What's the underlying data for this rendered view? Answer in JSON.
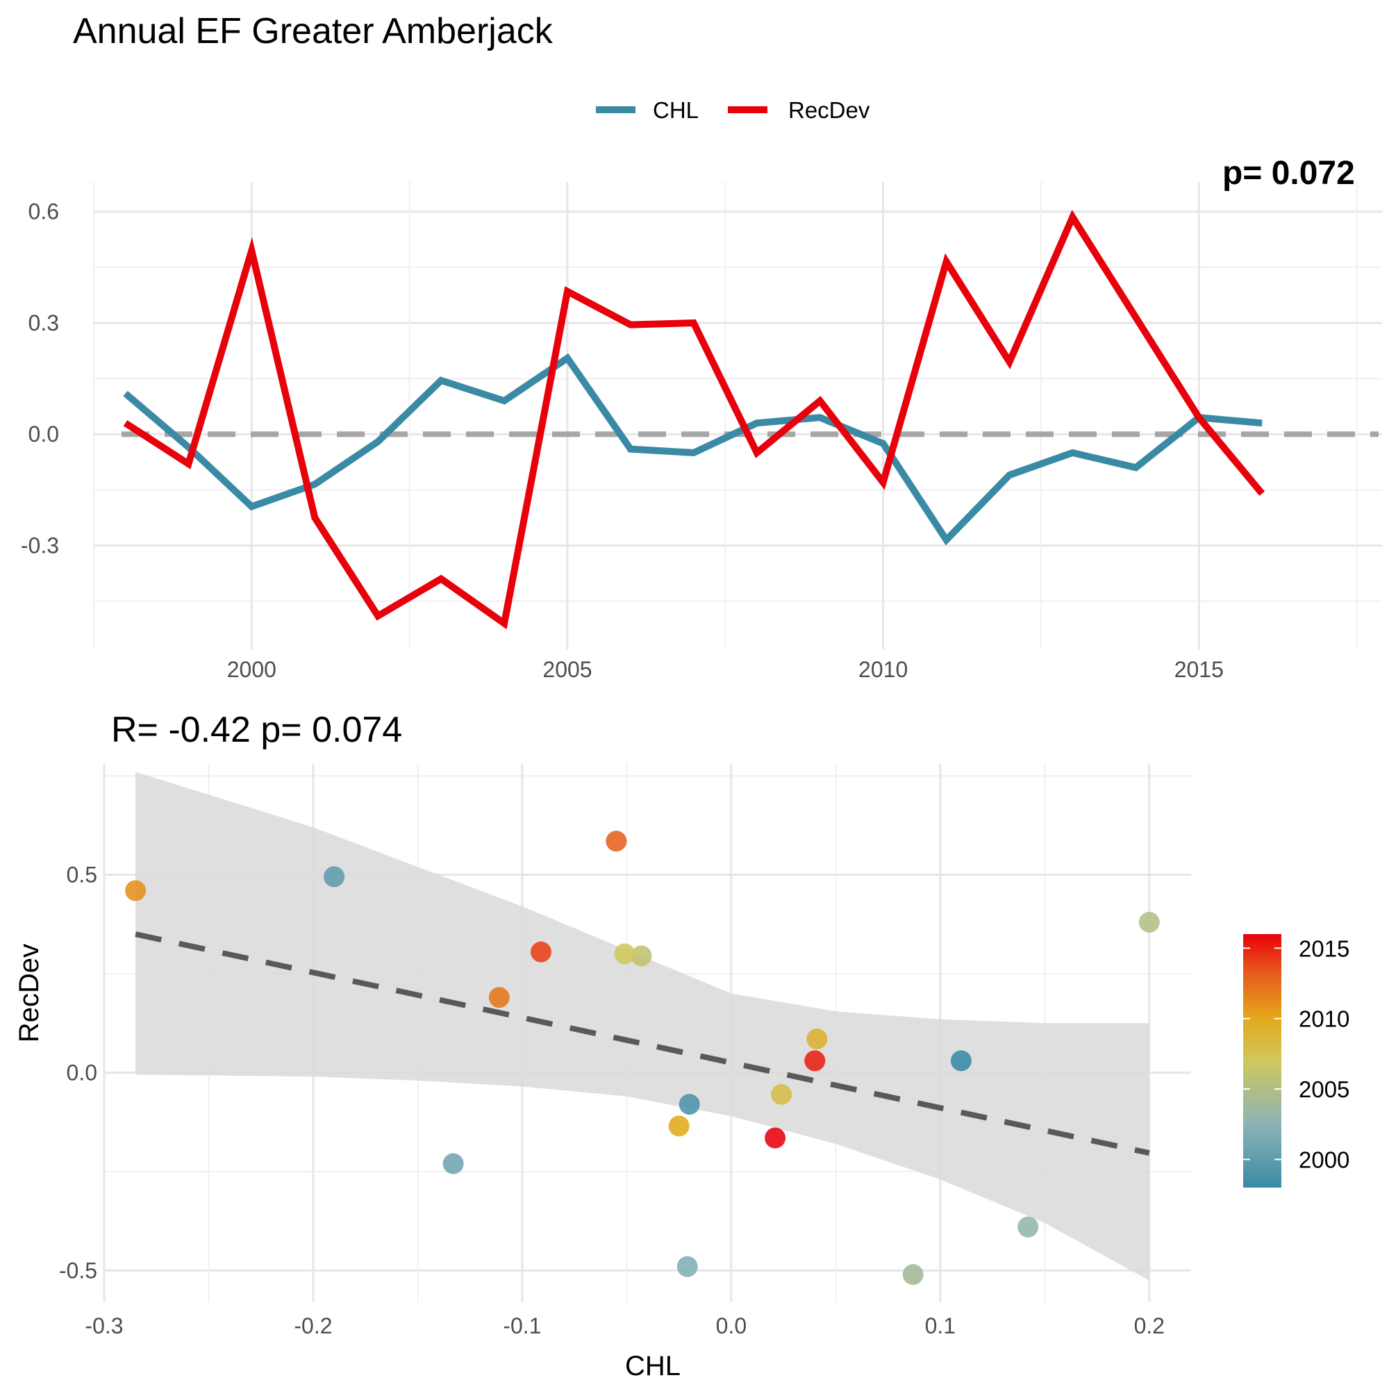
{
  "title": "Annual EF Greater Amberjack",
  "chart_data": [
    {
      "type": "line",
      "title": "Annual EF Greater Amberjack",
      "overlay_text": "p= 0.072",
      "xlabel": "",
      "ylabel": "",
      "x_ticks": [
        "2000",
        "2005",
        "2010",
        "2015"
      ],
      "y_ticks": [
        "0.6",
        "0.3",
        "0.0",
        "-0.3"
      ],
      "xlim": [
        1997.5,
        2017.9
      ],
      "ylim": [
        -0.58,
        0.68
      ],
      "reference_line": {
        "y": 0,
        "style": "dashed",
        "color": "#a6a6a6"
      },
      "legend_position": "top",
      "x": [
        1998,
        1999,
        2000,
        2001,
        2002,
        2003,
        2004,
        2005,
        2006,
        2007,
        2008,
        2009,
        2010,
        2011,
        2012,
        2013,
        2014,
        2015,
        2016
      ],
      "series": [
        {
          "name": "CHL",
          "color": "#3a8aa5",
          "values": [
            0.11,
            -0.035,
            -0.195,
            -0.135,
            -0.02,
            0.145,
            0.09,
            0.205,
            -0.04,
            -0.05,
            0.03,
            0.045,
            -0.025,
            -0.285,
            -0.11,
            -0.05,
            -0.09,
            0.045,
            0.03
          ]
        },
        {
          "name": "RecDev",
          "color": "#e8000b",
          "values": [
            0.03,
            -0.08,
            0.495,
            -0.225,
            -0.49,
            -0.39,
            -0.51,
            0.385,
            0.295,
            0.3,
            -0.05,
            0.09,
            -0.13,
            0.465,
            0.195,
            0.585,
            0.315,
            0.045,
            -0.16
          ]
        }
      ]
    },
    {
      "type": "scatter",
      "title": "R= -0.42  p= 0.074",
      "xlabel": "CHL",
      "ylabel": "RecDev",
      "x_ticks": [
        "-0.3",
        "-0.2",
        "-0.1",
        "0.0",
        "0.1",
        "0.2"
      ],
      "y_ticks": [
        "0.5",
        "0.0",
        "-0.5"
      ],
      "xlim": [
        -0.3,
        0.22
      ],
      "ylim": [
        -0.58,
        0.78
      ],
      "regression_line": {
        "intercept": 0.025,
        "slope": -1.14,
        "x_range": [
          -0.285,
          0.2
        ],
        "style": "dashed",
        "color": "#595959"
      },
      "confidence_band": {
        "color": "#d9d9d9",
        "x": [
          -0.285,
          -0.2,
          -0.15,
          -0.1,
          -0.05,
          0.0,
          0.05,
          0.1,
          0.15,
          0.2
        ],
        "upper": [
          0.76,
          0.62,
          0.52,
          0.42,
          0.31,
          0.2,
          0.155,
          0.135,
          0.125,
          0.125
        ],
        "lower": [
          -0.005,
          -0.01,
          -0.02,
          -0.035,
          -0.06,
          -0.11,
          -0.18,
          -0.27,
          -0.38,
          -0.525
        ]
      },
      "color_scale": {
        "title": "",
        "range": [
          1998,
          2016
        ],
        "ticks": [
          "2000",
          "2005",
          "2010",
          "2015"
        ],
        "stops": [
          [
            "0",
            "#3a8aa5"
          ],
          [
            "0.25",
            "#8bb3b6"
          ],
          [
            "0.5",
            "#cfc85c"
          ],
          [
            "0.67",
            "#e4a71a"
          ],
          [
            "0.85",
            "#e6591c"
          ],
          [
            "1",
            "#e8000b"
          ]
        ]
      },
      "points": [
        {
          "year": 1998,
          "x": 0.11,
          "y": 0.03
        },
        {
          "year": 1999,
          "x": -0.02,
          "y": -0.08
        },
        {
          "year": 2000,
          "x": -0.19,
          "y": 0.495
        },
        {
          "year": 2001,
          "x": -0.133,
          "y": -0.23
        },
        {
          "year": 2002,
          "x": -0.021,
          "y": -0.49
        },
        {
          "year": 2003,
          "x": 0.142,
          "y": -0.39
        },
        {
          "year": 2004,
          "x": 0.087,
          "y": -0.51
        },
        {
          "year": 2005,
          "x": 0.2,
          "y": 0.38
        },
        {
          "year": 2006,
          "x": -0.043,
          "y": 0.295
        },
        {
          "year": 2007,
          "x": -0.051,
          "y": 0.3
        },
        {
          "year": 2008,
          "x": 0.024,
          "y": -0.055
        },
        {
          "year": 2009,
          "x": 0.041,
          "y": 0.085
        },
        {
          "year": 2010,
          "x": -0.025,
          "y": -0.135
        },
        {
          "year": 2011,
          "x": -0.285,
          "y": 0.46
        },
        {
          "year": 2012,
          "x": -0.111,
          "y": 0.19
        },
        {
          "year": 2013,
          "x": -0.055,
          "y": 0.585
        },
        {
          "year": 2014,
          "x": -0.091,
          "y": 0.305
        },
        {
          "year": 2015,
          "x": 0.04,
          "y": 0.03
        },
        {
          "year": 2016,
          "x": 0.021,
          "y": -0.165
        }
      ]
    }
  ]
}
